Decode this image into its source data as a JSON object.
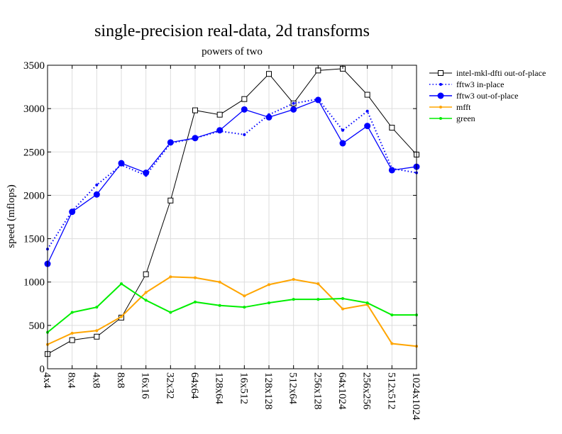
{
  "chart_data": {
    "type": "line",
    "title": "single-precision real-data, 2d transforms",
    "subtitle": "powers of two",
    "xlabel": "",
    "ylabel": "speed (mflops)",
    "ylim": [
      0,
      3500
    ],
    "yticks": [
      0,
      500,
      1000,
      1500,
      2000,
      2500,
      3000,
      3500
    ],
    "grid": true,
    "legend_position": "right",
    "categories": [
      "4x4",
      "8x4",
      "4x8",
      "8x8",
      "16x16",
      "32x32",
      "64x64",
      "128x64",
      "16x512",
      "128x128",
      "512x64",
      "256x128",
      "64x1024",
      "256x256",
      "512x512",
      "1024x1024"
    ],
    "series": [
      {
        "name": "intel-mkl-dfti out-of-place",
        "color": "#000000",
        "marker": "square",
        "style": "solid",
        "values": [
          170,
          330,
          370,
          590,
          1090,
          1940,
          2980,
          2930,
          3110,
          3400,
          3060,
          3440,
          3460,
          3160,
          2780,
          2470
        ]
      },
      {
        "name": "fftw3 in-place",
        "color": "#0000ff",
        "marker": "small-dot",
        "style": "dotted",
        "values": [
          1380,
          1820,
          2120,
          2350,
          2230,
          2600,
          2660,
          2740,
          2700,
          2930,
          3060,
          3110,
          2750,
          2970,
          2310,
          2260
        ]
      },
      {
        "name": "fftw3 out-of-place",
        "color": "#0000ff",
        "marker": "dot",
        "style": "solid",
        "values": [
          1210,
          1810,
          2010,
          2370,
          2260,
          2610,
          2660,
          2750,
          2990,
          2900,
          2990,
          3100,
          2600,
          2800,
          2290,
          2330
        ]
      },
      {
        "name": "mfft",
        "color": "#ffa500",
        "marker": "small-dot",
        "style": "solid",
        "values": [
          280,
          410,
          440,
          600,
          880,
          1060,
          1050,
          1000,
          840,
          970,
          1030,
          980,
          690,
          740,
          290,
          260
        ]
      },
      {
        "name": "green",
        "color": "#00ee00",
        "marker": "small-dot",
        "style": "solid",
        "values": [
          420,
          650,
          710,
          980,
          790,
          650,
          770,
          730,
          710,
          760,
          800,
          800,
          810,
          760,
          620,
          620
        ]
      }
    ]
  }
}
